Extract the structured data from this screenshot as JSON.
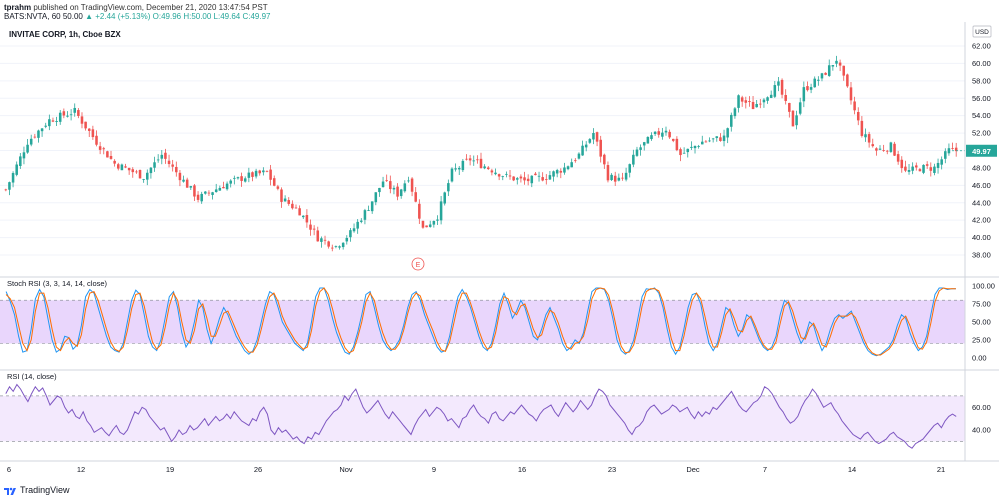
{
  "header": {
    "author": "tprahm",
    "published": "published on TradingView.com, December 21, 2020 13:47:54 PST",
    "line2": "BATS:NVTA, 60  50.00",
    "change": "▲ +2.44 (+5.13%)",
    "ohlc": "O:49.96 H:50.00 L:49.64 C:49.97"
  },
  "footer": {
    "brand": "TradingView"
  },
  "colors": {
    "up": "#26a69a",
    "down": "#ef5350",
    "k_line": "#2196f3",
    "d_line": "#ff6d00",
    "rsi_line": "#7e57c2",
    "band": "#e1c8fb"
  },
  "chart_data": [
    {
      "type": "candlestick",
      "title": "INVITAE CORP, 1h, Cboe BZX",
      "currency": "USD",
      "last_price": "49.97",
      "event_marker": "E",
      "ylim": [
        37,
        63.3
      ],
      "yticks": [
        "62.00",
        "60.00",
        "58.00",
        "56.00",
        "54.00",
        "52.00",
        "50.00",
        "48.00",
        "46.00",
        "44.00",
        "42.00",
        "40.00",
        "38.00"
      ],
      "xticks": [
        "6",
        "12",
        "19",
        "26",
        "Nov",
        "9",
        "16",
        "23",
        "Dec",
        "7",
        "14",
        "21"
      ],
      "anchors": [
        {
          "idx": 0,
          "price": 45.5
        },
        {
          "idx": 6,
          "price": 51
        },
        {
          "idx": 12,
          "price": 53.5
        },
        {
          "idx": 19,
          "price": 54.5
        },
        {
          "idx": 25,
          "price": 51
        },
        {
          "idx": 30,
          "price": 48.5
        },
        {
          "idx": 38,
          "price": 47
        },
        {
          "idx": 43,
          "price": 49.5
        },
        {
          "idx": 48,
          "price": 47
        },
        {
          "idx": 53,
          "price": 44.5
        },
        {
          "idx": 60,
          "price": 46
        },
        {
          "idx": 66,
          "price": 47
        },
        {
          "idx": 72,
          "price": 47.5
        },
        {
          "idx": 76,
          "price": 44.5
        },
        {
          "idx": 81,
          "price": 43
        },
        {
          "idx": 86,
          "price": 40
        },
        {
          "idx": 91,
          "price": 39
        },
        {
          "idx": 95,
          "price": 40.5
        },
        {
          "idx": 100,
          "price": 43.5
        },
        {
          "idx": 104,
          "price": 46.5
        },
        {
          "idx": 108,
          "price": 45
        },
        {
          "idx": 111,
          "price": 47
        },
        {
          "idx": 115,
          "price": 41
        },
        {
          "idx": 119,
          "price": 42.5
        },
        {
          "idx": 123,
          "price": 47.5
        },
        {
          "idx": 128,
          "price": 49
        },
        {
          "idx": 133,
          "price": 48
        },
        {
          "idx": 138,
          "price": 47
        },
        {
          "idx": 143,
          "price": 46.5
        },
        {
          "idx": 149,
          "price": 47
        },
        {
          "idx": 154,
          "price": 48
        },
        {
          "idx": 158,
          "price": 49.5
        },
        {
          "idx": 162,
          "price": 52
        },
        {
          "idx": 166,
          "price": 47
        },
        {
          "idx": 170,
          "price": 46.5
        },
        {
          "idx": 174,
          "price": 50
        },
        {
          "idx": 178,
          "price": 51.5
        },
        {
          "idx": 182,
          "price": 52.5
        },
        {
          "idx": 186,
          "price": 49.5
        },
        {
          "idx": 192,
          "price": 51
        },
        {
          "idx": 198,
          "price": 51.5
        },
        {
          "idx": 202,
          "price": 56
        },
        {
          "idx": 206,
          "price": 55
        },
        {
          "idx": 210,
          "price": 56.5
        },
        {
          "idx": 213,
          "price": 57.5
        },
        {
          "idx": 217,
          "price": 53
        },
        {
          "idx": 220,
          "price": 57
        },
        {
          "idx": 225,
          "price": 58.5
        },
        {
          "idx": 229,
          "price": 60.5
        },
        {
          "idx": 232,
          "price": 57
        },
        {
          "idx": 236,
          "price": 52
        },
        {
          "idx": 240,
          "price": 50
        },
        {
          "idx": 244,
          "price": 50.5
        },
        {
          "idx": 248,
          "price": 47.5
        },
        {
          "idx": 252,
          "price": 48
        },
        {
          "idx": 256,
          "price": 48
        },
        {
          "idx": 260,
          "price": 50
        },
        {
          "idx": 262,
          "price": 49.97
        }
      ]
    },
    {
      "type": "line",
      "title": "Stoch RSI (3, 3, 14, 14, close)",
      "ylim": [
        -3,
        104
      ],
      "yticks": [
        "100.00",
        "75.00",
        "50.00",
        "25.00",
        "0.00"
      ],
      "band": [
        20,
        80
      ],
      "series": [
        {
          "name": "K",
          "values": [
            92,
            78,
            60,
            30,
            8,
            10,
            40,
            82,
            95,
            85,
            55,
            25,
            8,
            12,
            30,
            28,
            12,
            18,
            45,
            85,
            95,
            90,
            70,
            50,
            30,
            15,
            10,
            8,
            20,
            50,
            80,
            94,
            88,
            60,
            30,
            15,
            10,
            25,
            55,
            85,
            92,
            70,
            35,
            15,
            25,
            50,
            80,
            70,
            40,
            20,
            35,
            55,
            70,
            60,
            45,
            30,
            20,
            10,
            5,
            10,
            25,
            50,
            75,
            92,
            88,
            70,
            50,
            40,
            30,
            20,
            15,
            10,
            20,
            50,
            85,
            97,
            97,
            80,
            55,
            35,
            20,
            8,
            5,
            15,
            35,
            60,
            88,
            92,
            70,
            45,
            25,
            15,
            10,
            15,
            25,
            45,
            70,
            88,
            92,
            80,
            60,
            45,
            30,
            15,
            8,
            10,
            30,
            60,
            85,
            95,
            85,
            70,
            50,
            30,
            15,
            10,
            20,
            45,
            75,
            90,
            75,
            55,
            65,
            80,
            70,
            50,
            30,
            25,
            40,
            60,
            70,
            55,
            40,
            20,
            10,
            15,
            25,
            20,
            35,
            65,
            92,
            97,
            97,
            95,
            80,
            55,
            25,
            10,
            5,
            10,
            25,
            55,
            85,
            96,
            95,
            97,
            90,
            70,
            40,
            15,
            5,
            15,
            40,
            70,
            88,
            90,
            75,
            45,
            20,
            10,
            20,
            45,
            70,
            65,
            45,
            30,
            40,
            60,
            55,
            40,
            25,
            15,
            10,
            15,
            30,
            60,
            80,
            75,
            55,
            35,
            20,
            30,
            50,
            45,
            25,
            10,
            20,
            40,
            55,
            60,
            55,
            60,
            65,
            50,
            35,
            20,
            10,
            5,
            3,
            5,
            10,
            15,
            25,
            45,
            60,
            55,
            35,
            20,
            10,
            15,
            30,
            60,
            88,
            97,
            97,
            95,
            96,
            96
          ]
        },
        {
          "name": "D",
          "values": [
            88,
            82,
            70,
            45,
            20,
            10,
            25,
            65,
            90,
            90,
            70,
            40,
            15,
            10,
            22,
            28,
            20,
            16,
            32,
            68,
            90,
            92,
            80,
            60,
            40,
            22,
            12,
            9,
            15,
            38,
            68,
            88,
            90,
            72,
            45,
            22,
            12,
            18,
            42,
            72,
            90,
            80,
            50,
            25,
            20,
            38,
            68,
            75,
            55,
            30,
            30,
            45,
            62,
            65,
            52,
            38,
            25,
            15,
            8,
            8,
            18,
            40,
            65,
            85,
            90,
            78,
            58,
            45,
            35,
            25,
            18,
            12,
            15,
            38,
            72,
            92,
            97,
            88,
            68,
            45,
            28,
            14,
            7,
            10,
            28,
            50,
            78,
            90,
            80,
            55,
            35,
            20,
            12,
            12,
            20,
            38,
            62,
            82,
            90,
            86,
            68,
            52,
            38,
            22,
            11,
            9,
            22,
            48,
            75,
            90,
            90,
            76,
            58,
            38,
            22,
            12,
            15,
            35,
            65,
            85,
            82,
            65,
            60,
            72,
            75,
            58,
            40,
            28,
            32,
            52,
            66,
            62,
            48,
            30,
            15,
            12,
            20,
            22,
            30,
            52,
            82,
            95,
            97,
            96,
            87,
            65,
            38,
            16,
            7,
            8,
            18,
            42,
            72,
            92,
            96,
            96,
            93,
            78,
            52,
            26,
            10,
            10,
            30,
            58,
            80,
            90,
            82,
            58,
            32,
            15,
            15,
            35,
            60,
            68,
            55,
            38,
            36,
            52,
            58,
            45,
            30,
            18,
            12,
            12,
            22,
            48,
            72,
            78,
            65,
            45,
            28,
            26,
            42,
            48,
            35,
            18,
            15,
            30,
            48,
            58,
            58,
            58,
            62,
            56,
            42,
            26,
            14,
            7,
            4,
            4,
            8,
            12,
            20,
            36,
            52,
            58,
            45,
            28,
            14,
            12,
            22,
            48,
            78,
            93,
            97,
            96,
            96,
            96
          ]
        }
      ]
    },
    {
      "type": "line",
      "title": "RSI (14, close)",
      "ylim": [
        18,
        84
      ],
      "yticks": [
        "60.00",
        "40.00"
      ],
      "band": [
        30,
        70
      ],
      "series": [
        {
          "name": "RSI",
          "values": [
            72,
            78,
            74,
            80,
            76,
            70,
            65,
            72,
            78,
            74,
            77,
            70,
            62,
            66,
            70,
            68,
            60,
            55,
            58,
            52,
            50,
            56,
            48,
            44,
            38,
            40,
            42,
            38,
            35,
            40,
            44,
            38,
            36,
            40,
            48,
            56,
            54,
            60,
            58,
            52,
            48,
            44,
            40,
            42,
            36,
            30,
            34,
            40,
            36,
            38,
            44,
            40,
            42,
            46,
            50,
            44,
            48,
            52,
            48,
            50,
            54,
            50,
            56,
            52,
            48,
            46,
            44,
            50,
            48,
            56,
            60,
            54,
            40,
            36,
            42,
            38,
            40,
            36,
            32,
            34,
            30,
            28,
            34,
            32,
            38,
            36,
            42,
            48,
            52,
            56,
            58,
            62,
            70,
            66,
            72,
            76,
            68,
            60,
            55,
            58,
            62,
            66,
            60,
            54,
            50,
            56,
            52,
            48,
            44,
            40,
            36,
            44,
            50,
            54,
            58,
            52,
            56,
            60,
            58,
            54,
            48,
            50,
            46,
            42,
            50,
            52,
            58,
            62,
            56,
            52,
            50,
            46,
            54,
            56,
            50,
            48,
            52,
            56,
            54,
            58,
            62,
            58,
            54,
            52,
            48,
            54,
            58,
            60,
            62,
            56,
            52,
            58,
            64,
            60,
            56,
            60,
            66,
            62,
            58,
            62,
            70,
            76,
            74,
            70,
            62,
            58,
            54,
            50,
            46,
            40,
            36,
            42,
            44,
            48,
            56,
            60,
            62,
            58,
            54,
            56,
            58,
            62,
            60,
            56,
            58,
            60,
            54,
            50,
            56,
            52,
            56,
            54,
            60,
            58,
            62,
            66,
            70,
            74,
            68,
            62,
            58,
            56,
            60,
            64,
            66,
            70,
            78,
            76,
            72,
            66,
            60,
            56,
            50,
            46,
            48,
            52,
            60,
            66,
            70,
            76,
            72,
            66,
            60,
            62,
            64,
            58,
            54,
            48,
            44,
            40,
            36,
            34,
            32,
            36,
            38,
            34,
            30,
            28,
            30,
            32,
            36,
            38,
            34,
            32,
            30,
            26,
            24,
            28,
            30,
            32,
            36,
            40,
            44,
            46,
            42,
            48,
            52,
            54,
            52
          ]
        }
      ]
    }
  ]
}
